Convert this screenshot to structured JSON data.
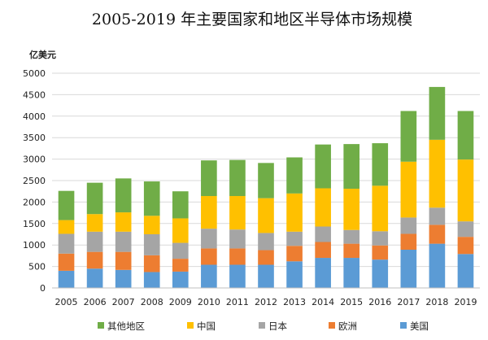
{
  "chart_data": {
    "type": "bar",
    "stacked": true,
    "title": "2005-2019 年主要国家和地区半导体市场规模",
    "ylabel": "亿美元",
    "xlabel": "",
    "ylim": [
      0,
      5000
    ],
    "yticks": [
      0,
      500,
      1000,
      1500,
      2000,
      2500,
      3000,
      3500,
      4000,
      4500,
      5000
    ],
    "grid": true,
    "legend_position": "bottom",
    "categories": [
      "2005",
      "2006",
      "2007",
      "2008",
      "2009",
      "2010",
      "2011",
      "2012",
      "2013",
      "2014",
      "2015",
      "2016",
      "2017",
      "2018",
      "2019"
    ],
    "series": [
      {
        "name": "美国",
        "color": "#5b9bd5",
        "values": [
          400,
          450,
          420,
          370,
          380,
          540,
          540,
          540,
          620,
          700,
          700,
          660,
          890,
          1030,
          790
        ]
      },
      {
        "name": "欧洲",
        "color": "#ed7d31",
        "values": [
          400,
          390,
          420,
          390,
          300,
          380,
          380,
          340,
          360,
          370,
          330,
          330,
          370,
          440,
          400
        ]
      },
      {
        "name": "日本",
        "color": "#a5a5a5",
        "values": [
          460,
          470,
          470,
          490,
          370,
          460,
          440,
          400,
          330,
          360,
          320,
          330,
          380,
          400,
          360
        ]
      },
      {
        "name": "中国",
        "color": "#ffc000",
        "values": [
          320,
          410,
          450,
          430,
          570,
          760,
          780,
          810,
          890,
          890,
          960,
          1060,
          1300,
          1580,
          1440
        ]
      },
      {
        "name": "其他地区",
        "color": "#70ad47",
        "values": [
          680,
          730,
          790,
          800,
          630,
          830,
          840,
          820,
          840,
          1020,
          1040,
          990,
          1180,
          1230,
          1130
        ]
      }
    ],
    "legend_order": [
      "其他地区",
      "中国",
      "日本",
      "欧洲",
      "美国"
    ]
  }
}
